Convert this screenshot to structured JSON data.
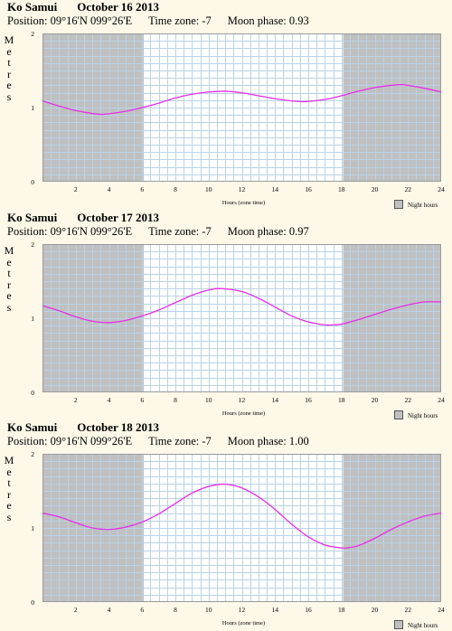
{
  "chart_data": [
    {
      "type": "line",
      "place": "Ko Samui",
      "date": "October 16 2013",
      "position_label": "Position: 09°16'N 099°26'E",
      "timezone_label": "Time zone: -7",
      "moon_label": "Moon phase: 0.93",
      "ylabel": "Metres",
      "xlabel": "Hours (zone time)",
      "legend": "Night hours",
      "xlim": [
        0,
        24
      ],
      "ylim": [
        0,
        2
      ],
      "x_ticks": [
        "2",
        "4",
        "6",
        "8",
        "10",
        "12",
        "14",
        "16",
        "18",
        "20",
        "22",
        "24"
      ],
      "y_ticks": [
        "0",
        "1",
        "2"
      ],
      "night": [
        [
          0,
          6.1
        ],
        [
          18.1,
          24
        ]
      ],
      "x": [
        0,
        1,
        2,
        3,
        3.7,
        5,
        6,
        7,
        8,
        9,
        10,
        11,
        12,
        13,
        14,
        15,
        15.8,
        17,
        18,
        19,
        20,
        21,
        21.6,
        22,
        23,
        24
      ],
      "series": [
        {
          "values": [
            1.09,
            1.02,
            0.96,
            0.92,
            0.91,
            0.95,
            1.0,
            1.06,
            1.13,
            1.18,
            1.21,
            1.22,
            1.2,
            1.16,
            1.12,
            1.09,
            1.08,
            1.11,
            1.16,
            1.22,
            1.27,
            1.3,
            1.31,
            1.3,
            1.26,
            1.21
          ]
        }
      ]
    },
    {
      "type": "line",
      "place": "Ko Samui",
      "date": "October 17 2013",
      "position_label": "Position: 09°16'N 099°26'E",
      "timezone_label": "Time zone: -7",
      "moon_label": "Moon phase: 0.97",
      "ylabel": "Metres",
      "xlabel": "Hours (zone time)",
      "legend": "Night hours",
      "xlim": [
        0,
        24
      ],
      "ylim": [
        0,
        2
      ],
      "x_ticks": [
        "2",
        "4",
        "6",
        "8",
        "10",
        "12",
        "14",
        "16",
        "18",
        "20",
        "22",
        "24"
      ],
      "y_ticks": [
        "0",
        "1",
        "2"
      ],
      "night": [
        [
          0,
          6.1
        ],
        [
          18.1,
          24
        ]
      ],
      "x": [
        0,
        1,
        2,
        3,
        4,
        5,
        6,
        7,
        8,
        9,
        10,
        10.7,
        12,
        13,
        14,
        15,
        16,
        17,
        17.5,
        18,
        19,
        20,
        21,
        22,
        23,
        24
      ],
      "series": [
        {
          "values": [
            1.17,
            1.1,
            1.02,
            0.96,
            0.94,
            0.97,
            1.03,
            1.11,
            1.21,
            1.31,
            1.38,
            1.4,
            1.36,
            1.27,
            1.15,
            1.03,
            0.95,
            0.91,
            0.91,
            0.92,
            0.98,
            1.05,
            1.12,
            1.18,
            1.22,
            1.22
          ]
        }
      ]
    },
    {
      "type": "line",
      "place": "Ko Samui",
      "date": "October 18 2013",
      "position_label": "Position: 09°16'N 099°26'E",
      "timezone_label": "Time zone: -7",
      "moon_label": "Moon phase: 1.00",
      "ylabel": "Metres",
      "xlabel": "Hours (zone time)",
      "legend": "Night hours",
      "xlim": [
        0,
        24
      ],
      "ylim": [
        0,
        2
      ],
      "x_ticks": [
        "2",
        "4",
        "6",
        "8",
        "10",
        "12",
        "14",
        "16",
        "18",
        "20",
        "22",
        "24"
      ],
      "y_ticks": [
        "0",
        "1",
        "2"
      ],
      "night": [
        [
          0,
          6.1
        ],
        [
          18.1,
          24
        ]
      ],
      "x": [
        0,
        1,
        2,
        3,
        4,
        5,
        6,
        7,
        8,
        9,
        10,
        11,
        12,
        13,
        14,
        15,
        16,
        17,
        18,
        18.3,
        19,
        20,
        21,
        22,
        23,
        24
      ],
      "series": [
        {
          "values": [
            1.2,
            1.15,
            1.07,
            1.0,
            0.98,
            1.01,
            1.08,
            1.19,
            1.33,
            1.47,
            1.56,
            1.59,
            1.54,
            1.42,
            1.25,
            1.05,
            0.88,
            0.77,
            0.73,
            0.73,
            0.76,
            0.86,
            0.98,
            1.08,
            1.16,
            1.2
          ]
        }
      ]
    }
  ]
}
